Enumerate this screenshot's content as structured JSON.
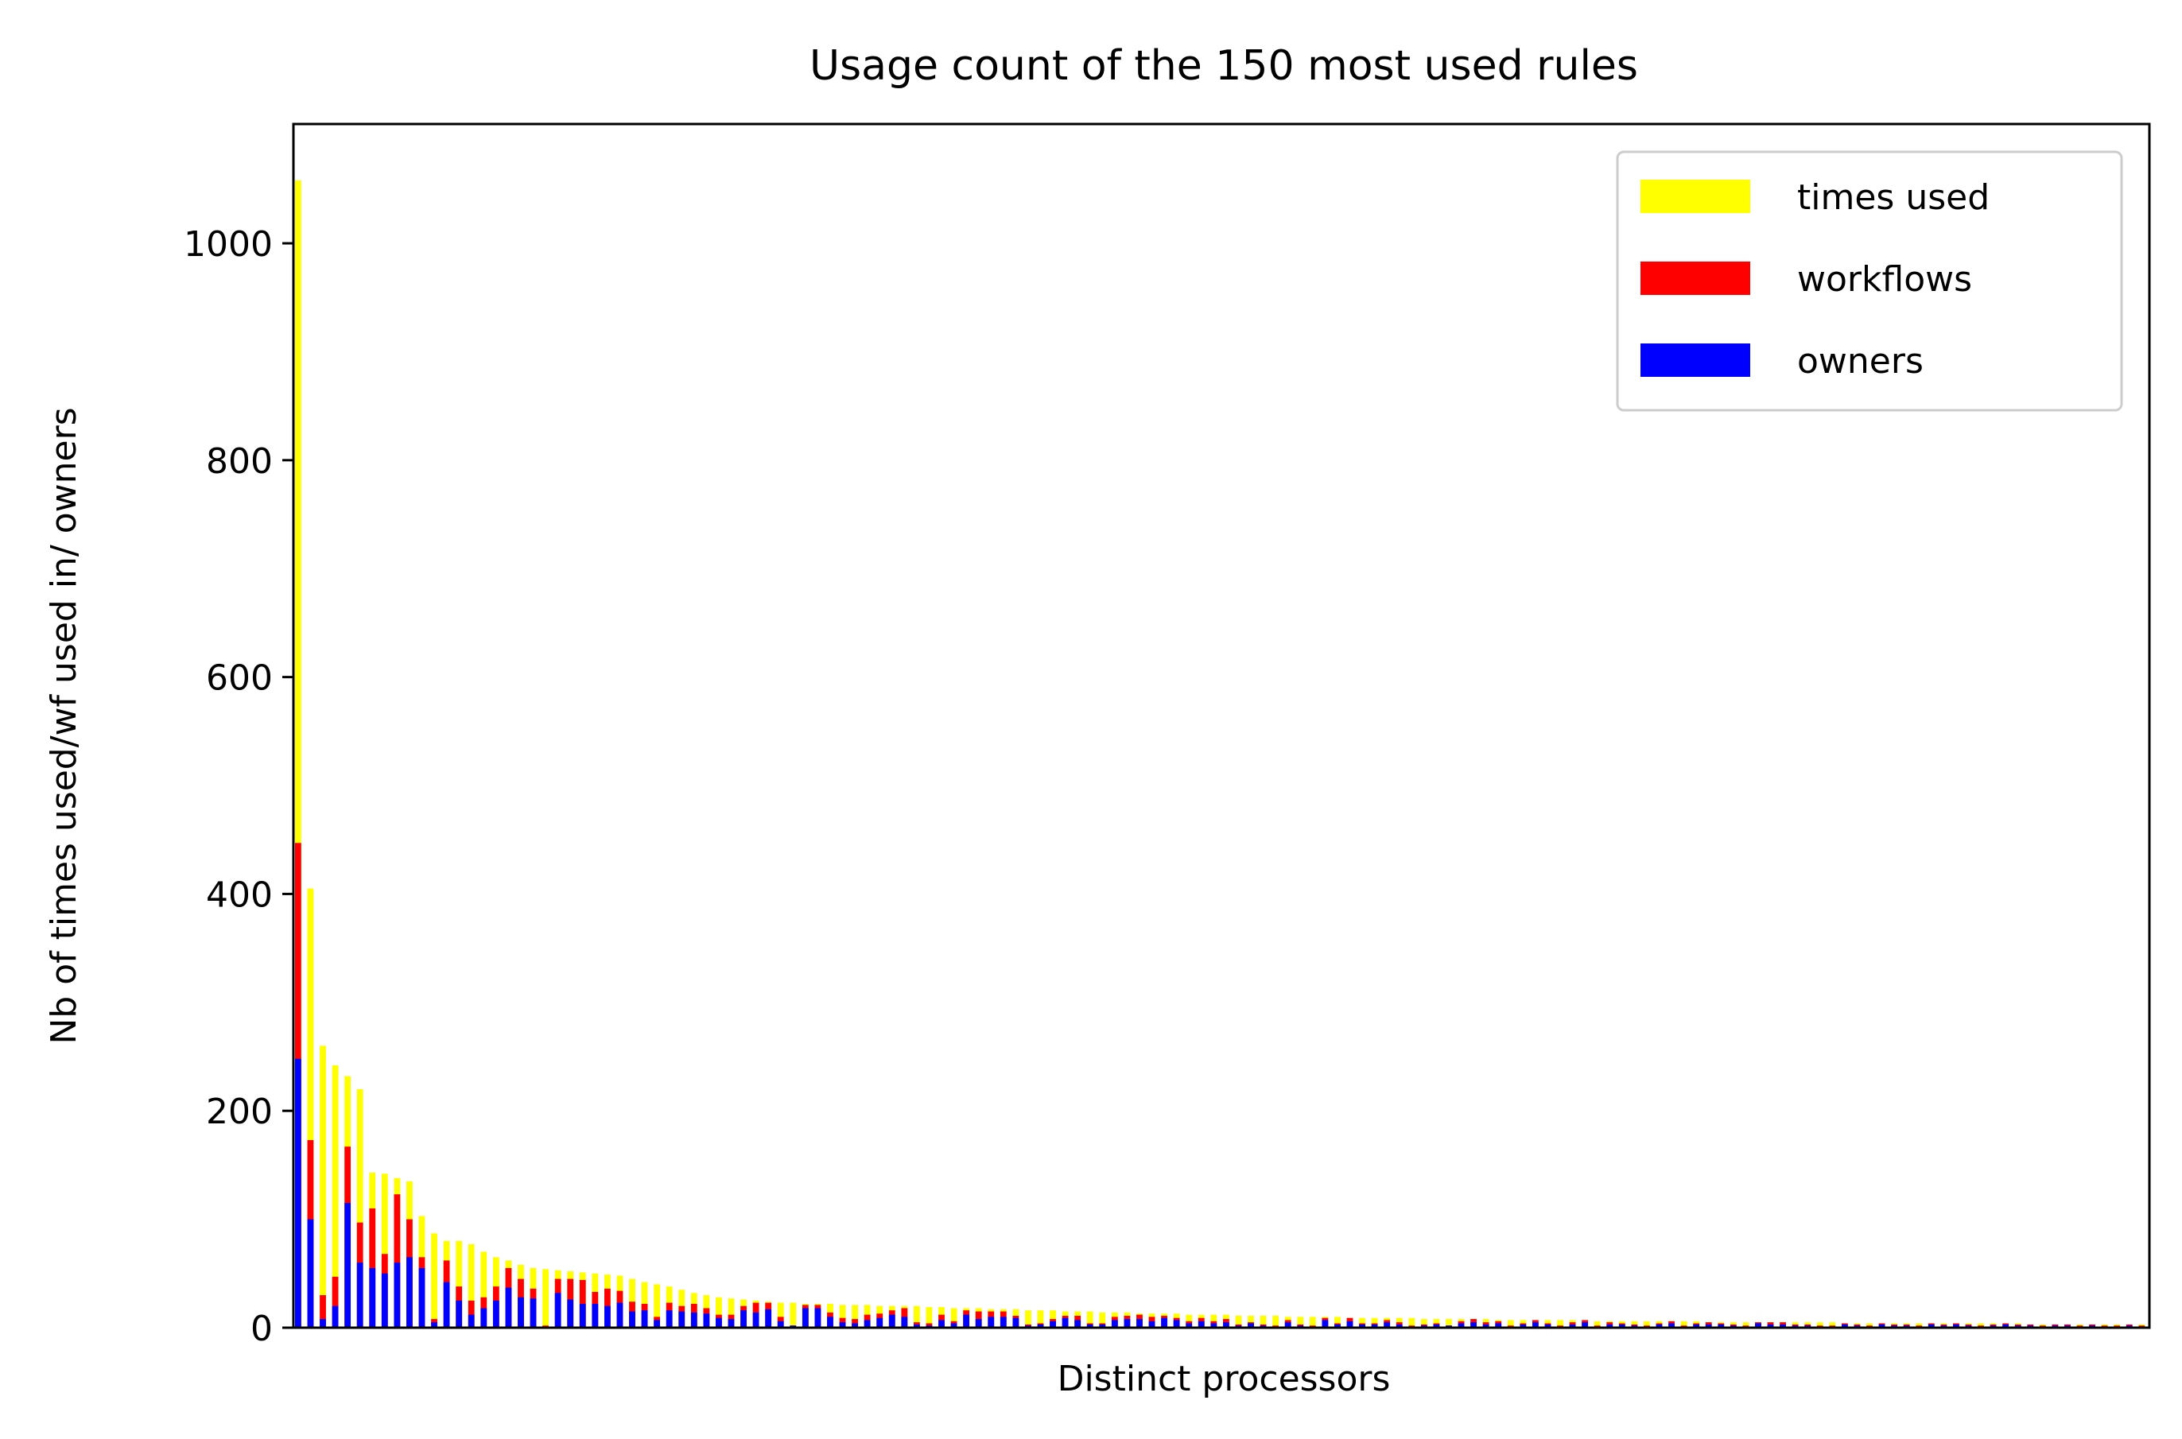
{
  "chart_data": {
    "type": "bar",
    "title": "Usage count of the 150 most used rules",
    "xlabel": "Distinct processors",
    "ylabel": "Nb of times used/wf used in/ owners",
    "ylim": [
      0,
      1110
    ],
    "yticks": [
      0,
      200,
      400,
      600,
      800,
      1000
    ],
    "xticks_shown": false,
    "grid": false,
    "legend_position": "top-right",
    "n_categories": 150,
    "series": [
      {
        "name": "times used",
        "color": "#ffff00",
        "values": [
          1058,
          405,
          260,
          242,
          232,
          220,
          143,
          142,
          138,
          135,
          103,
          87,
          80,
          80,
          77,
          70,
          65,
          62,
          58,
          55,
          54,
          53,
          52,
          51,
          50,
          49,
          48,
          45,
          42,
          40,
          38,
          35,
          32,
          30,
          28,
          27,
          26,
          25,
          24,
          23,
          23,
          22,
          22,
          22,
          21,
          21,
          21,
          20,
          20,
          20,
          20,
          19,
          19,
          18,
          18,
          18,
          17,
          17,
          17,
          16,
          16,
          16,
          15,
          15,
          15,
          14,
          14,
          14,
          13,
          13,
          13,
          13,
          12,
          12,
          12,
          12,
          11,
          11,
          11,
          11,
          10,
          10,
          10,
          10,
          10,
          9,
          9,
          9,
          9,
          9,
          9,
          8,
          8,
          8,
          8,
          8,
          8,
          7,
          7,
          7,
          7,
          7,
          7,
          7,
          7,
          6,
          6,
          6,
          6,
          6,
          6,
          6,
          6,
          6,
          5,
          5,
          5,
          5,
          5,
          5,
          5,
          5,
          5,
          5,
          5,
          4,
          4,
          4,
          4,
          4,
          4,
          4,
          4,
          4,
          4,
          4,
          4,
          4,
          4,
          4,
          3,
          3,
          3,
          3,
          3,
          3,
          3,
          3,
          3,
          3
        ]
      },
      {
        "name": "workflows",
        "color": "#ff0000",
        "values": [
          447,
          173,
          30,
          47,
          167,
          97,
          110,
          68,
          123,
          100,
          65,
          8,
          62,
          38,
          25,
          28,
          38,
          55,
          45,
          36,
          2,
          45,
          45,
          44,
          33,
          36,
          34,
          24,
          22,
          10,
          23,
          20,
          22,
          18,
          12,
          12,
          20,
          23,
          23,
          10,
          2,
          21,
          21,
          14,
          9,
          8,
          12,
          13,
          16,
          18,
          5,
          4,
          12,
          6,
          16,
          15,
          15,
          15,
          11,
          3,
          4,
          8,
          11,
          11,
          4,
          4,
          10,
          11,
          12,
          10,
          11,
          9,
          6,
          9,
          6,
          8,
          3,
          5,
          3,
          2,
          7,
          3,
          2,
          9,
          4,
          9,
          4,
          4,
          7,
          5,
          2,
          3,
          4,
          2,
          6,
          8,
          5,
          6,
          2,
          4,
          7,
          4,
          2,
          5,
          7,
          2,
          5,
          4,
          3,
          2,
          4,
          6,
          2,
          4,
          5,
          4,
          3,
          2,
          5,
          5,
          5,
          3,
          3,
          2,
          2,
          4,
          3,
          2,
          4,
          3,
          3,
          2,
          4,
          3,
          4,
          3,
          2,
          3,
          4,
          3,
          3,
          2,
          3,
          3,
          2,
          3,
          2,
          2,
          3,
          2
        ]
      },
      {
        "name": "owners",
        "color": "#0000ff",
        "values": [
          248,
          100,
          8,
          20,
          115,
          60,
          55,
          50,
          60,
          65,
          55,
          5,
          42,
          25,
          12,
          18,
          25,
          37,
          28,
          27,
          1,
          32,
          26,
          22,
          22,
          20,
          23,
          15,
          16,
          7,
          16,
          15,
          14,
          13,
          9,
          8,
          16,
          14,
          17,
          6,
          2,
          18,
          18,
          10,
          5,
          4,
          7,
          9,
          12,
          10,
          3,
          2,
          7,
          4,
          12,
          8,
          10,
          10,
          9,
          2,
          3,
          6,
          9,
          7,
          3,
          3,
          7,
          8,
          8,
          6,
          9,
          7,
          4,
          6,
          4,
          5,
          2,
          4,
          2,
          1,
          5,
          2,
          1,
          7,
          3,
          6,
          3,
          3,
          5,
          3,
          1,
          2,
          3,
          2,
          4,
          5,
          3,
          4,
          1,
          3,
          5,
          3,
          1,
          3,
          5,
          1,
          3,
          3,
          2,
          1,
          3,
          4,
          1,
          3,
          3,
          3,
          2,
          1,
          4,
          3,
          3,
          2,
          2,
          1,
          1,
          3,
          2,
          1,
          3,
          2,
          2,
          1,
          3,
          2,
          3,
          2,
          1,
          2,
          3,
          2,
          2,
          1,
          2,
          2,
          1,
          2,
          1,
          1,
          2,
          1
        ]
      }
    ]
  }
}
